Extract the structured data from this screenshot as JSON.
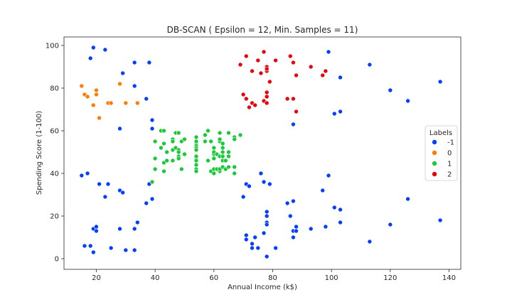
{
  "chart_data": {
    "type": "scatter",
    "title": "DB-SCAN ( Epsilon = 12, Min. Samples = 11)",
    "xlabel": "Annual Income (k$)",
    "ylabel": "Spending Score (1-100)",
    "xlim": [
      9,
      144
    ],
    "ylim": [
      -5,
      104
    ],
    "xticks": [
      20,
      40,
      60,
      80,
      100,
      120,
      140
    ],
    "yticks": [
      0,
      20,
      40,
      60,
      80,
      100
    ],
    "grid": false,
    "legend": {
      "title": "Labels",
      "placement": "center-right"
    },
    "series": [
      {
        "name": "-1",
        "color": "#023eff",
        "points": [
          [
            15,
            39
          ],
          [
            16,
            6
          ],
          [
            17,
            40
          ],
          [
            18,
            94
          ],
          [
            18,
            6
          ],
          [
            19,
            3
          ],
          [
            19,
            14
          ],
          [
            19,
            99
          ],
          [
            20,
            15
          ],
          [
            20,
            13
          ],
          [
            21,
            35
          ],
          [
            23,
            98
          ],
          [
            23,
            29
          ],
          [
            24,
            35
          ],
          [
            25,
            5
          ],
          [
            28,
            14
          ],
          [
            28,
            32
          ],
          [
            28,
            61
          ],
          [
            29,
            31
          ],
          [
            29,
            87
          ],
          [
            30,
            4
          ],
          [
            33,
            4
          ],
          [
            33,
            14
          ],
          [
            33,
            92
          ],
          [
            33,
            81
          ],
          [
            34,
            17
          ],
          [
            37,
            26
          ],
          [
            37,
            75
          ],
          [
            38,
            35
          ],
          [
            38,
            92
          ],
          [
            39,
            61
          ],
          [
            39,
            65
          ],
          [
            39,
            28
          ],
          [
            62,
            59
          ],
          [
            63,
            43
          ],
          [
            70,
            29
          ],
          [
            71,
            35
          ],
          [
            71,
            11
          ],
          [
            71,
            9
          ],
          [
            72,
            34
          ],
          [
            73,
            5
          ],
          [
            73,
            7
          ],
          [
            74,
            10
          ],
          [
            75,
            5
          ],
          [
            76,
            40
          ],
          [
            77,
            12
          ],
          [
            77,
            36
          ],
          [
            78,
            22
          ],
          [
            78,
            17
          ],
          [
            78,
            20
          ],
          [
            78,
            1
          ],
          [
            78,
            16
          ],
          [
            79,
            35
          ],
          [
            81,
            5
          ],
          [
            85,
            26
          ],
          [
            86,
            20
          ],
          [
            87,
            27
          ],
          [
            87,
            13
          ],
          [
            87,
            63
          ],
          [
            87,
            10
          ],
          [
            88,
            13
          ],
          [
            88,
            15
          ],
          [
            93,
            14
          ],
          [
            97,
            32
          ],
          [
            98,
            15
          ],
          [
            99,
            39
          ],
          [
            99,
            97
          ],
          [
            101,
            24
          ],
          [
            101,
            68
          ],
          [
            103,
            17
          ],
          [
            103,
            23
          ],
          [
            103,
            85
          ],
          [
            103,
            69
          ],
          [
            113,
            8
          ],
          [
            113,
            91
          ],
          [
            120,
            16
          ],
          [
            120,
            79
          ],
          [
            126,
            28
          ],
          [
            126,
            74
          ],
          [
            137,
            18
          ],
          [
            137,
            83
          ]
        ]
      },
      {
        "name": "0",
        "color": "#ff7c00",
        "points": [
          [
            15,
            81
          ],
          [
            16,
            77
          ],
          [
            17,
            76
          ],
          [
            19,
            72
          ],
          [
            20,
            77
          ],
          [
            20,
            79
          ],
          [
            21,
            66
          ],
          [
            24,
            73
          ],
          [
            25,
            73
          ],
          [
            28,
            82
          ],
          [
            30,
            73
          ],
          [
            34,
            73
          ]
        ]
      },
      {
        "name": "1",
        "color": "#1ac938",
        "points": [
          [
            39,
            36
          ],
          [
            40,
            55
          ],
          [
            40,
            47
          ],
          [
            40,
            42
          ],
          [
            42,
            52
          ],
          [
            42,
            60
          ],
          [
            43,
            60
          ],
          [
            43,
            54
          ],
          [
            43,
            45
          ],
          [
            43,
            41
          ],
          [
            44,
            50
          ],
          [
            44,
            46
          ],
          [
            46,
            51
          ],
          [
            46,
            46
          ],
          [
            46,
            56
          ],
          [
            46,
            55
          ],
          [
            47,
            52
          ],
          [
            47,
            59
          ],
          [
            48,
            51
          ],
          [
            48,
            59
          ],
          [
            48,
            50
          ],
          [
            48,
            48
          ],
          [
            48,
            59
          ],
          [
            48,
            47
          ],
          [
            49,
            55
          ],
          [
            49,
            42
          ],
          [
            50,
            49
          ],
          [
            50,
            56
          ],
          [
            54,
            47
          ],
          [
            54,
            54
          ],
          [
            54,
            53
          ],
          [
            54,
            48
          ],
          [
            54,
            52
          ],
          [
            54,
            42
          ],
          [
            54,
            51
          ],
          [
            54,
            55
          ],
          [
            54,
            41
          ],
          [
            54,
            44
          ],
          [
            54,
            57
          ],
          [
            54,
            46
          ],
          [
            57,
            58
          ],
          [
            57,
            55
          ],
          [
            58,
            60
          ],
          [
            58,
            46
          ],
          [
            59,
            55
          ],
          [
            59,
            41
          ],
          [
            60,
            49
          ],
          [
            60,
            40
          ],
          [
            60,
            42
          ],
          [
            60,
            52
          ],
          [
            60,
            47
          ],
          [
            60,
            50
          ],
          [
            61,
            42
          ],
          [
            61,
            49
          ],
          [
            62,
            41
          ],
          [
            62,
            48
          ],
          [
            62,
            59
          ],
          [
            62,
            55
          ],
          [
            62,
            56
          ],
          [
            62,
            42
          ],
          [
            63,
            50
          ],
          [
            63,
            46
          ],
          [
            63,
            43
          ],
          [
            63,
            48
          ],
          [
            63,
            52
          ],
          [
            63,
            54
          ],
          [
            64,
            42
          ],
          [
            64,
            46
          ],
          [
            65,
            48
          ],
          [
            65,
            50
          ],
          [
            65,
            43
          ],
          [
            65,
            59
          ],
          [
            67,
            43
          ],
          [
            67,
            57
          ],
          [
            67,
            56
          ],
          [
            67,
            40
          ],
          [
            69,
            58
          ]
        ]
      },
      {
        "name": "2",
        "color": "#e8000b",
        "points": [
          [
            69,
            91
          ],
          [
            70,
            77
          ],
          [
            71,
            95
          ],
          [
            71,
            75
          ],
          [
            72,
            71
          ],
          [
            73,
            88
          ],
          [
            73,
            73
          ],
          [
            74,
            72
          ],
          [
            75,
            93
          ],
          [
            76,
            87
          ],
          [
            77,
            97
          ],
          [
            77,
            74
          ],
          [
            78,
            90
          ],
          [
            78,
            88
          ],
          [
            78,
            76
          ],
          [
            78,
            89
          ],
          [
            78,
            78
          ],
          [
            78,
            73
          ],
          [
            79,
            83
          ],
          [
            81,
            93
          ],
          [
            85,
            75
          ],
          [
            86,
            95
          ],
          [
            87,
            75
          ],
          [
            87,
            92
          ],
          [
            88,
            86
          ],
          [
            88,
            69
          ],
          [
            93,
            90
          ],
          [
            97,
            86
          ],
          [
            98,
            88
          ]
        ]
      }
    ]
  }
}
